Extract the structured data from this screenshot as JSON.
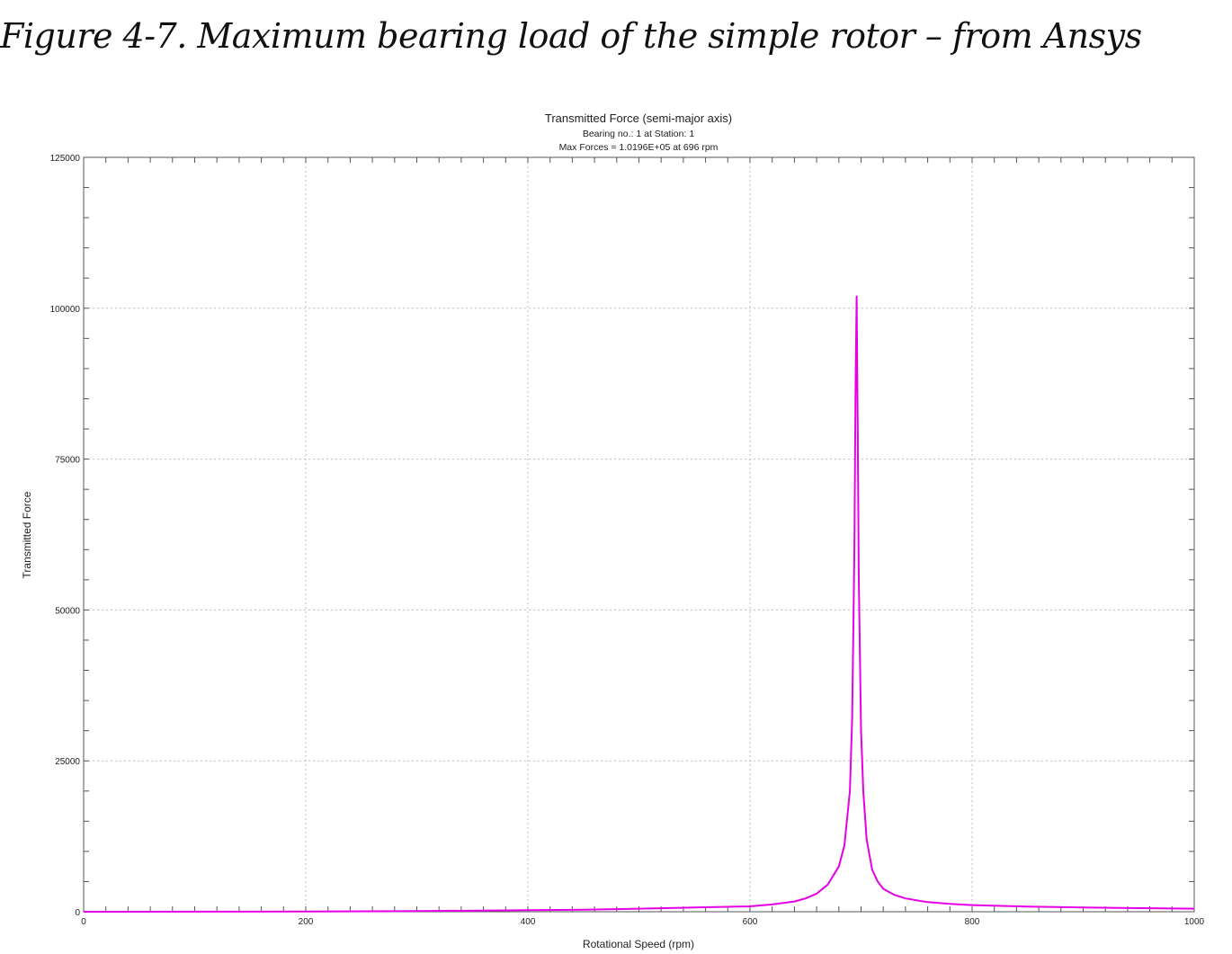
{
  "figure_caption": "Figure 4-7. Maximum bearing load of the simple rotor – from Ansys",
  "chart_data": {
    "type": "line",
    "title": "Transmitted Force (semi-major axis)",
    "subtitle_lines": [
      "Bearing no.: 1  at Station:  1",
      "Max Forces = 1.0196E+05 at 696 rpm"
    ],
    "xlabel": "Rotational Speed (rpm)",
    "ylabel": "Transmitted Force",
    "xlim": [
      0,
      1000
    ],
    "ylim": [
      0,
      125000
    ],
    "x_ticks": [
      0,
      200,
      400,
      600,
      800,
      1000
    ],
    "y_ticks": [
      0,
      25000,
      50000,
      75000,
      100000,
      125000
    ],
    "grid": true,
    "line_color": "#e600e6",
    "series": [
      {
        "x": [
          0,
          100,
          200,
          300,
          400,
          450,
          500,
          550,
          600,
          620,
          640,
          650,
          660,
          670,
          680,
          685,
          690,
          692,
          694,
          695,
          696,
          697,
          698,
          700,
          702,
          705,
          710,
          715,
          720,
          730,
          740,
          760,
          780,
          800,
          850,
          900,
          950,
          1000
        ],
        "y": [
          0,
          10,
          40,
          100,
          250,
          350,
          500,
          700,
          900,
          1200,
          1700,
          2200,
          3000,
          4500,
          7500,
          11000,
          20000,
          32000,
          60000,
          85000,
          101960,
          80000,
          55000,
          30000,
          20000,
          12000,
          7000,
          5000,
          3800,
          2800,
          2200,
          1600,
          1300,
          1100,
          850,
          700,
          600,
          500
        ]
      }
    ]
  }
}
